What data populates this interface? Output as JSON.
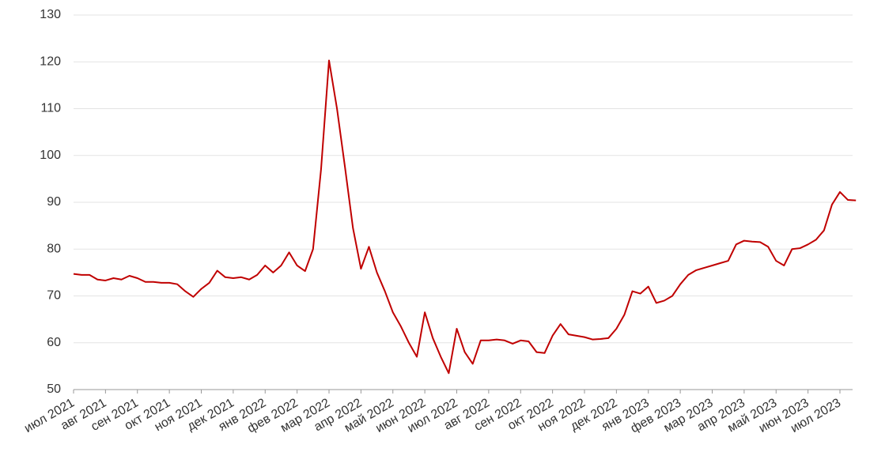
{
  "chart_data": {
    "type": "line",
    "categories": [
      "июл 2021",
      null,
      null,
      null,
      "авг 2021",
      null,
      null,
      null,
      "сен 2021",
      null,
      null,
      null,
      "окт 2021",
      null,
      null,
      null,
      "ноя 2021",
      null,
      null,
      null,
      "дек 2021",
      null,
      null,
      null,
      "янв 2022",
      null,
      null,
      null,
      "фев 2022",
      null,
      null,
      null,
      "мар 2022",
      null,
      null,
      null,
      "апр 2022",
      null,
      null,
      null,
      "май 2022",
      null,
      null,
      null,
      "июн 2022",
      null,
      null,
      null,
      "июл 2022",
      null,
      null,
      null,
      "авг 2022",
      null,
      null,
      null,
      "сен 2022",
      null,
      null,
      null,
      "окт 2022",
      null,
      null,
      null,
      "ноя 2022",
      null,
      null,
      null,
      "дек 2022",
      null,
      null,
      null,
      "янв 2023",
      null,
      null,
      null,
      "фев 2023",
      null,
      null,
      null,
      "мар 2023",
      null,
      null,
      null,
      "апр 2023",
      null,
      null,
      null,
      "май 2023",
      null,
      null,
      null,
      "июн 2023",
      null,
      null,
      null,
      "июл 2023",
      null,
      null
    ],
    "values": [
      74.7,
      74.5,
      74.5,
      73.5,
      73.3,
      73.8,
      73.5,
      74.3,
      73.8,
      73.0,
      73.0,
      72.8,
      72.8,
      72.5,
      71.0,
      69.8,
      71.5,
      72.8,
      75.4,
      74.0,
      73.8,
      74.0,
      73.5,
      74.5,
      76.5,
      75.0,
      76.5,
      79.3,
      76.5,
      75.3,
      80.0,
      97.0,
      120.3,
      110.0,
      97.5,
      84.5,
      75.8,
      80.5,
      75.0,
      71.0,
      66.5,
      63.5,
      60.0,
      57.0,
      66.5,
      61.0,
      57.0,
      53.5,
      63.0,
      58.0,
      55.5,
      60.5,
      60.5,
      60.7,
      60.5,
      59.8,
      60.5,
      60.3,
      58.0,
      57.8,
      61.5,
      64.0,
      61.8,
      61.5,
      61.2,
      60.7,
      60.8,
      61.0,
      63.0,
      66.0,
      71.0,
      70.5,
      72.0,
      68.5,
      69.0,
      70.0,
      72.5,
      74.5,
      75.5,
      76.0,
      76.5,
      77.0,
      77.5,
      81.0,
      81.8,
      81.6,
      81.5,
      80.5,
      77.5,
      76.5,
      80.0,
      80.2,
      81.0,
      82.0,
      84.0,
      89.5,
      92.2,
      90.5,
      90.4
    ],
    "color": "#c00000",
    "ylim": [
      50,
      130
    ],
    "yticks": [
      50,
      60,
      70,
      80,
      90,
      100,
      110,
      120,
      130
    ],
    "grid": true
  }
}
